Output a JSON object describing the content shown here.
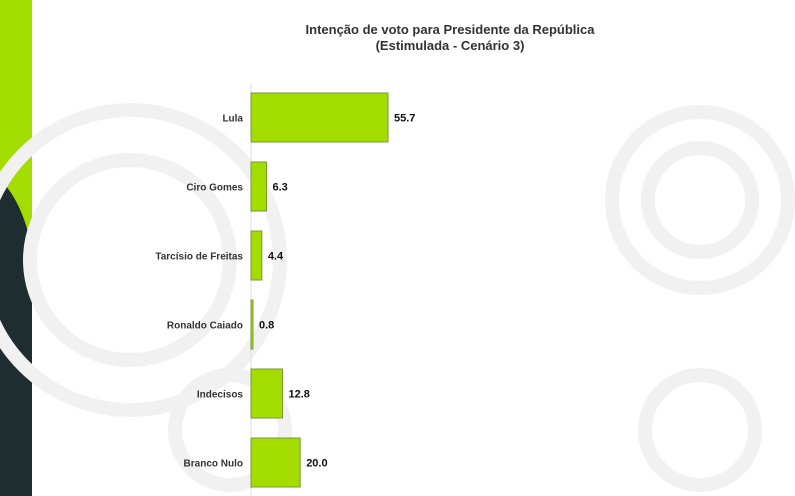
{
  "chart_data": {
    "type": "bar",
    "orientation": "horizontal",
    "title": "Intenção de voto para Presidente da República",
    "subtitle": "(Estimulada - Cenário 3)",
    "categories": [
      "Lula",
      "Ciro Gomes",
      "Tarcísio de Freitas",
      "Ronaldo Caiado",
      "Indecisos",
      "Branco Nulo"
    ],
    "values": [
      55.7,
      6.3,
      4.4,
      0.8,
      12.8,
      20.0
    ],
    "value_labels": [
      "55.7",
      "6.3",
      "4.4",
      "0.8",
      "12.8",
      "20.0"
    ],
    "xlim": [
      0,
      100
    ],
    "grid": false,
    "legend": "none",
    "colors": {
      "bar": "#a3dd00",
      "bar_edge": "#7a9a3a",
      "accent": "#a3dd00",
      "dark": "#1e2d2f"
    }
  }
}
